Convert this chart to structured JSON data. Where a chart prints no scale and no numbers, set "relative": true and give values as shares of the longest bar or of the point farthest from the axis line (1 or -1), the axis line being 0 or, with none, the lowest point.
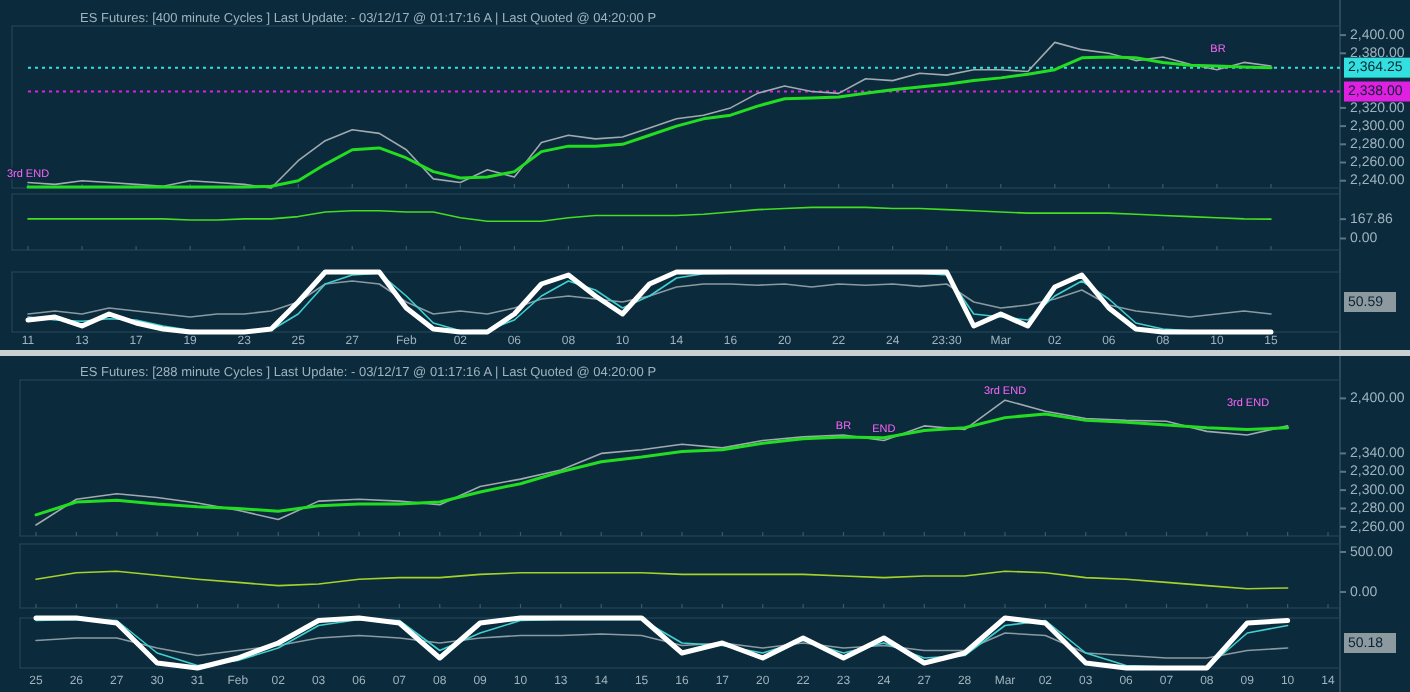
{
  "chart_data": [
    {
      "type": "line",
      "title": "ES Futures: [400 minute Cycles ] Last Update:  - 03/12/17 @ 01:17:16 A | Last Quoted @ 04:20:00 P",
      "categories": [
        "11",
        null,
        "13",
        null,
        "17",
        null,
        "19",
        null,
        "23",
        null,
        "25",
        null,
        "27",
        null,
        "Feb",
        null,
        "02",
        null,
        "06",
        null,
        "08",
        null,
        "10",
        null,
        "14",
        null,
        "16",
        null,
        "20",
        null,
        "22",
        null,
        "24",
        null,
        "23:30",
        null,
        "Mar",
        null,
        "02",
        null,
        "06",
        null,
        "08",
        null,
        "10",
        null,
        "15",
        null
      ],
      "series": [
        {
          "color": "#a0aab0",
          "values": [
            2238,
            2236,
            2240,
            2238,
            2236,
            2234,
            2240,
            2238,
            2236,
            2232,
            2262,
            2284,
            2296,
            2292,
            2274,
            2242,
            2238,
            2252,
            2244,
            2282,
            2290,
            2286,
            2288,
            2298,
            2308,
            2312,
            2320,
            2336,
            2344,
            2338,
            2336,
            2352,
            2350,
            2358,
            2356,
            2362,
            2362,
            2360,
            2392,
            2384,
            2380,
            2372,
            2376,
            2368,
            2362,
            2370,
            2366,
            null
          ]
        },
        {
          "color": "#22dd22",
          "values": [
            2233,
            2233,
            2233,
            2233,
            2233,
            2233,
            2233,
            2233,
            2233,
            2234,
            2240,
            2258,
            2274,
            2276,
            2265,
            2250,
            2243,
            2244,
            2250,
            2272,
            2278,
            2278,
            2280,
            2290,
            2300,
            2308,
            2312,
            2322,
            2330,
            2331,
            2332,
            2336,
            2340,
            2343,
            2346,
            2350,
            2353,
            2357,
            2362,
            2375,
            2376,
            2375,
            2370,
            2367,
            2366,
            2365,
            2364,
            null
          ]
        }
      ],
      "ylim": [
        2232,
        2410
      ],
      "yticks": [
        {
          "value": 2240,
          "label": "2,240.00"
        },
        {
          "value": 2260,
          "label": "2,260.00"
        },
        {
          "value": 2280,
          "label": "2,280.00"
        },
        {
          "value": 2300,
          "label": "2,300.00"
        },
        {
          "value": 2320,
          "label": "2,320.00"
        },
        {
          "value": 2380,
          "label": "2,380.00"
        },
        {
          "value": 2400,
          "label": "2,400.00"
        }
      ],
      "ref_lines": [
        {
          "axis": "y",
          "value": 2364.25,
          "label": "2,364.25",
          "color": "#33e0e0",
          "line_style": "dotted"
        },
        {
          "axis": "y",
          "value": 2338,
          "label": "2,338.00",
          "color": "#e020e0",
          "line_style": "dotted"
        }
      ],
      "annotations": [
        {
          "text": "3rd END",
          "x": "11",
          "y": 2238
        },
        "BR"
      ],
      "tick_labels": "y"
    },
    {
      "type": "line",
      "categories": [
        "11",
        null,
        "13",
        null,
        "17",
        null,
        "19",
        null,
        "23",
        null,
        "25",
        null,
        "27",
        null,
        "Feb",
        null,
        "02",
        null,
        "06",
        null,
        "08",
        null,
        "10",
        null,
        "14",
        null,
        "16",
        null,
        "20",
        null,
        "22",
        null,
        "24",
        null,
        "23:30",
        null,
        "Mar",
        null,
        "02",
        null,
        "06",
        null,
        "08",
        null,
        "10",
        null,
        "15",
        null
      ],
      "series": [
        {
          "color": "#44dd22",
          "values": [
            170,
            170,
            170,
            170,
            170,
            170,
            160,
            160,
            170,
            170,
            190,
            230,
            240,
            240,
            230,
            230,
            180,
            150,
            150,
            150,
            180,
            200,
            200,
            200,
            200,
            210,
            230,
            250,
            260,
            270,
            270,
            270,
            260,
            260,
            250,
            240,
            230,
            220,
            220,
            220,
            220,
            210,
            200,
            190,
            180,
            170,
            167.86,
            null
          ]
        }
      ],
      "ylim": [
        -100,
        386
      ],
      "yticks": [
        {
          "value": 0,
          "label": "0.00"
        },
        {
          "value": 167.86,
          "label": "167.86"
        }
      ],
      "tick_labels": "y"
    },
    {
      "type": "line",
      "relative": true,
      "categories": [
        "11",
        null,
        "13",
        null,
        "17",
        null,
        "19",
        null,
        "23",
        null,
        "25",
        null,
        "27",
        null,
        "Feb",
        null,
        "02",
        null,
        "06",
        null,
        "08",
        null,
        "10",
        null,
        "14",
        null,
        "16",
        null,
        "20",
        null,
        "22",
        null,
        "24",
        null,
        "23:30",
        null,
        "Mar",
        null,
        "02",
        null,
        "06",
        null,
        "08",
        null,
        "10",
        null,
        "15",
        null
      ],
      "series": [
        {
          "color": "#8a9aa2",
          "values": [
            0.3,
            0.35,
            0.3,
            0.4,
            0.35,
            0.3,
            0.25,
            0.3,
            0.3,
            0.35,
            0.5,
            0.8,
            0.85,
            0.8,
            0.5,
            0.3,
            0.35,
            0.3,
            0.4,
            0.55,
            0.6,
            0.55,
            0.5,
            0.6,
            0.75,
            0.8,
            0.8,
            0.78,
            0.8,
            0.75,
            0.8,
            0.78,
            0.8,
            0.76,
            0.8,
            0.5,
            0.4,
            0.45,
            0.55,
            0.7,
            0.45,
            0.35,
            0.3,
            0.25,
            0.3,
            0.35,
            0.3,
            null
          ]
        },
        {
          "color": "#3fd0d0",
          "values": [
            0.25,
            0.2,
            0.18,
            0.22,
            0.2,
            0.1,
            0.03,
            0,
            0,
            0.03,
            0.3,
            0.8,
            0.95,
            0.98,
            0.6,
            0.15,
            0.02,
            0.03,
            0.2,
            0.6,
            0.85,
            0.7,
            0.4,
            0.6,
            0.9,
            0.97,
            0.98,
            0.98,
            0.98,
            0.98,
            0.98,
            0.98,
            0.98,
            0.98,
            0.95,
            0.3,
            0.25,
            0.2,
            0.6,
            0.85,
            0.55,
            0.15,
            0.05,
            0.02,
            null,
            null,
            null,
            null
          ]
        },
        {
          "color": "#ffffff",
          "values": [
            0.2,
            0.25,
            0.1,
            0.3,
            0.15,
            0.05,
            0,
            0,
            0,
            0.05,
            0.5,
            1,
            1,
            1,
            0.4,
            0.05,
            0,
            0,
            0.3,
            0.8,
            0.95,
            0.6,
            0.3,
            0.8,
            1,
            1,
            1,
            1,
            1,
            1,
            1,
            1,
            1,
            1,
            1,
            0.1,
            0.3,
            0.1,
            0.75,
            0.95,
            0.4,
            0.05,
            0,
            0,
            0,
            0,
            0,
            null
          ]
        }
      ],
      "annotations": [
        "50.59"
      ],
      "tick_labels": "x"
    },
    {
      "type": "line",
      "title": "ES Futures: [288 minute Cycles ] Last Update:  - 03/12/17 @ 01:17:16 A | Last Quoted @ 04:20:00 P",
      "categories": [
        "25",
        "26",
        "27",
        "30",
        "31",
        "Feb",
        "02",
        "03",
        "06",
        "07",
        "08",
        "09",
        "10",
        "13",
        "14",
        "15",
        "16",
        "17",
        "20",
        "22",
        "23",
        "24",
        "27",
        "28",
        "Mar",
        "02",
        "03",
        "06",
        "07",
        "08",
        "09",
        "10",
        "14"
      ],
      "series": [
        {
          "color": "#a0aab0",
          "values": [
            2262,
            2290,
            2296,
            2292,
            2286,
            2278,
            2268,
            2288,
            2290,
            2288,
            2284,
            2304,
            2312,
            2322,
            2340,
            2344,
            2350,
            2346,
            2354,
            2358,
            2360,
            2354,
            2370,
            2366,
            2398,
            2386,
            2378,
            2376,
            2375,
            2364,
            2360,
            2370,
            null
          ]
        },
        {
          "color": "#22dd22",
          "values": [
            2273,
            2287,
            2289,
            2285,
            2282,
            2280,
            2277,
            2283,
            2285,
            2285,
            2287,
            2298,
            2307,
            2320,
            2331,
            2336,
            2342,
            2344,
            2351,
            2356,
            2358,
            2357,
            2365,
            2368,
            2379,
            2383,
            2376,
            2374,
            2371,
            2368,
            2366,
            2368,
            null
          ]
        }
      ],
      "ylim": [
        2250,
        2420
      ],
      "yticks": [
        {
          "value": 2260,
          "label": "2,260.00"
        },
        {
          "value": 2280,
          "label": "2,280.00"
        },
        {
          "value": 2300,
          "label": "2,300.00"
        },
        {
          "value": 2320,
          "label": "2,320.00"
        },
        {
          "value": 2340,
          "label": "2,340.00"
        },
        {
          "value": 2400,
          "label": "2,400.00"
        }
      ],
      "annotations": [
        {
          "text": "3rd END",
          "x": "Mar",
          "y": 2398
        },
        {
          "text": "END",
          "x": "24",
          "y": 2357
        },
        {
          "text": "BR",
          "x": "23",
          "y": 2360
        },
        "3rd END"
      ],
      "tick_labels": "y"
    },
    {
      "type": "line",
      "categories": [
        "25",
        "26",
        "27",
        "30",
        "31",
        "Feb",
        "02",
        "03",
        "06",
        "07",
        "08",
        "09",
        "10",
        "13",
        "14",
        "15",
        "16",
        "17",
        "20",
        "22",
        "23",
        "24",
        "27",
        "28",
        "Mar",
        "02",
        "03",
        "06",
        "07",
        "08",
        "09",
        "10",
        "14"
      ],
      "series": [
        {
          "color": "#a6d12a",
          "values": [
            160,
            240,
            260,
            210,
            160,
            120,
            80,
            100,
            160,
            180,
            180,
            220,
            240,
            240,
            240,
            240,
            220,
            220,
            220,
            220,
            200,
            180,
            200,
            200,
            260,
            240,
            180,
            160,
            120,
            80,
            40,
            50.91,
            null
          ]
        }
      ],
      "ylim": [
        -200,
        600
      ],
      "yticks": [
        {
          "value": 0,
          "label": "0.00"
        },
        {
          "value": 500,
          "label": "500.00"
        }
      ],
      "tick_labels": "y"
    },
    {
      "type": "line",
      "relative": true,
      "categories": [
        "25",
        "26",
        "27",
        "30",
        "31",
        "Feb",
        "02",
        "03",
        "06",
        "07",
        "08",
        "09",
        "10",
        "13",
        "14",
        "15",
        "16",
        "17",
        "20",
        "22",
        "23",
        "24",
        "27",
        "28",
        "Mar",
        "02",
        "03",
        "06",
        "07",
        "08",
        "09",
        "10",
        "14"
      ],
      "series": [
        {
          "color": "#8a9aa2",
          "values": [
            0.55,
            0.6,
            0.6,
            0.4,
            0.25,
            0.35,
            0.45,
            0.6,
            0.65,
            0.6,
            0.5,
            0.6,
            0.65,
            0.65,
            0.68,
            0.65,
            0.45,
            0.5,
            0.4,
            0.5,
            0.4,
            0.45,
            0.35,
            0.35,
            0.7,
            0.65,
            0.3,
            0.25,
            0.2,
            0.2,
            0.35,
            0.4,
            null
          ]
        },
        {
          "color": "#3fd0d0",
          "values": [
            0.95,
            0.97,
            0.95,
            0.3,
            0.05,
            0.15,
            0.4,
            0.85,
            0.97,
            0.95,
            0.35,
            0.7,
            0.95,
            0.97,
            0.97,
            0.97,
            0.5,
            0.45,
            0.3,
            0.55,
            0.3,
            0.5,
            0.2,
            0.25,
            0.85,
            0.95,
            0.3,
            0.05,
            0.02,
            0,
            0.7,
            0.85,
            null
          ]
        },
        {
          "color": "#ffffff",
          "values": [
            1,
            1,
            0.9,
            0.1,
            0,
            0.2,
            0.5,
            0.95,
            1,
            0.9,
            0.2,
            0.9,
            1,
            1,
            1,
            1,
            0.3,
            0.5,
            0.2,
            0.6,
            0.2,
            0.6,
            0.1,
            0.3,
            1,
            0.9,
            0.1,
            0,
            0,
            0,
            0.9,
            0.95,
            null
          ]
        }
      ],
      "annotations": [
        "50.18"
      ],
      "tick_labels": "x"
    }
  ]
}
